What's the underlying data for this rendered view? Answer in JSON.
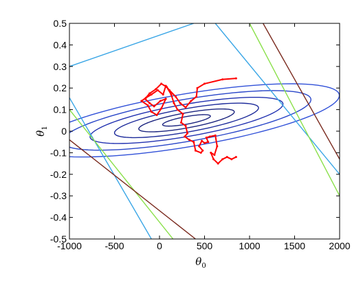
{
  "chart_data": {
    "type": "contour",
    "x": {
      "label": "θ",
      "label_subscript": "0",
      "range": [
        -1000,
        2000
      ],
      "ticks": [
        -1000,
        -500,
        0,
        500,
        1000,
        1500,
        2000
      ],
      "tick_labels": [
        "-1000",
        "-500",
        "0",
        "500",
        "1000",
        "1500",
        "2000"
      ]
    },
    "y": {
      "label": "θ",
      "label_subscript": "1",
      "range": [
        -0.5,
        0.5
      ],
      "ticks": [
        0.5,
        0.4,
        0.3,
        0.2,
        0.1,
        0,
        -0.1,
        -0.2,
        -0.3,
        -0.4,
        -0.5
      ],
      "tick_labels": [
        "0.5",
        "0.4",
        "0.3",
        "0.2",
        "0.1",
        "0",
        "-0.1",
        "-0.2",
        "-0.3",
        "-0.4",
        "-0.5"
      ]
    },
    "grid": false,
    "center": [
      300,
      0.05
    ],
    "ellipse_levels": [
      {
        "a": 135,
        "b": 0.035,
        "color": "#1a237e"
      },
      {
        "a": 270,
        "b": 0.07,
        "color": "#1a237e"
      },
      {
        "a": 420,
        "b": 0.105,
        "color": "#1c2a9a"
      },
      {
        "a": 580,
        "b": 0.14,
        "color": "#2030b0"
      },
      {
        "a": 760,
        "b": 0.18,
        "color": "#2845c8"
      },
      {
        "a": 960,
        "b": 0.22,
        "color": "#3050d8"
      }
    ],
    "straight_contours": [
      {
        "points": [
          [
            -1000,
            0.3
          ],
          [
            380,
            0.5
          ]
        ],
        "color": "#3aa6e6"
      },
      {
        "points": [
          [
            -1000,
            0.155
          ],
          [
            -90,
            -0.5
          ]
        ],
        "color": "#3aa6e6"
      },
      {
        "points": [
          [
            620,
            0.5
          ],
          [
            2000,
            -0.2
          ]
        ],
        "color": "#3aa6e6"
      },
      {
        "points": [
          [
            -1000,
            0.1
          ],
          [
            150,
            -0.5
          ]
        ],
        "color": "#8ae04a"
      },
      {
        "points": [
          [
            1000,
            0.5
          ],
          [
            2000,
            -0.3
          ]
        ],
        "color": "#8ae04a"
      },
      {
        "points": [
          [
            -1000,
            -0.04
          ],
          [
            400,
            -0.5
          ]
        ],
        "color": "#7a2a1e"
      },
      {
        "points": [
          [
            1150,
            0.5
          ],
          [
            2000,
            -0.13
          ]
        ],
        "color": "#7a2a1e"
      }
    ],
    "path_color": "#ff0000",
    "path": [
      [
        850,
        0.245
      ],
      [
        700,
        0.24
      ],
      [
        500,
        0.22
      ],
      [
        420,
        0.2
      ],
      [
        410,
        0.16
      ],
      [
        350,
        0.14
      ],
      [
        290,
        0.11
      ],
      [
        230,
        0.13
      ],
      [
        180,
        0.16
      ],
      [
        110,
        0.19
      ],
      [
        70,
        0.21
      ],
      [
        40,
        0.17
      ],
      [
        -20,
        0.19
      ],
      [
        -90,
        0.17
      ],
      [
        -150,
        0.155
      ],
      [
        -200,
        0.14
      ],
      [
        -130,
        0.12
      ],
      [
        -90,
        0.09
      ],
      [
        -30,
        0.075
      ],
      [
        20,
        0.105
      ],
      [
        70,
        0.15
      ],
      [
        10,
        0.14
      ],
      [
        -60,
        0.115
      ],
      [
        -110,
        0.13
      ],
      [
        -160,
        0.15
      ],
      [
        -110,
        0.175
      ],
      [
        -40,
        0.195
      ],
      [
        20,
        0.22
      ],
      [
        80,
        0.205
      ],
      [
        130,
        0.17
      ],
      [
        160,
        0.13
      ],
      [
        200,
        0.1
      ],
      [
        260,
        0.08
      ],
      [
        240,
        0.04
      ],
      [
        290,
        0.025
      ],
      [
        310,
        -0.01
      ],
      [
        280,
        -0.025
      ],
      [
        330,
        -0.04
      ],
      [
        380,
        -0.05
      ],
      [
        400,
        -0.09
      ],
      [
        460,
        -0.1
      ],
      [
        480,
        -0.09
      ],
      [
        440,
        -0.07
      ],
      [
        470,
        -0.045
      ],
      [
        500,
        -0.055
      ],
      [
        540,
        -0.05
      ],
      [
        520,
        -0.03
      ],
      [
        560,
        -0.025
      ],
      [
        620,
        -0.02
      ],
      [
        640,
        -0.07
      ],
      [
        610,
        -0.11
      ],
      [
        570,
        -0.1
      ],
      [
        600,
        -0.13
      ],
      [
        650,
        -0.15
      ],
      [
        700,
        -0.13
      ],
      [
        750,
        -0.12
      ],
      [
        800,
        -0.13
      ],
      [
        850,
        -0.12
      ]
    ]
  }
}
